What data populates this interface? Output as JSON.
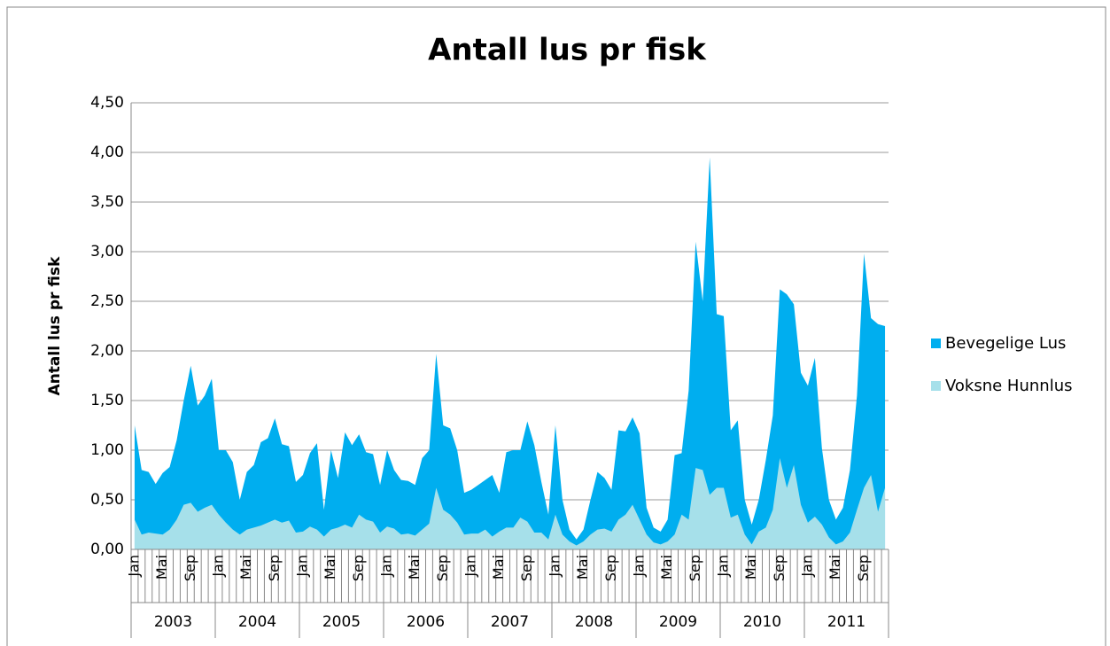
{
  "chart_data": {
    "type": "area",
    "title": "Antall lus pr fisk",
    "y_label": "Antall lus pr fisk",
    "categories": [
      "Jan",
      null,
      null,
      null,
      "Mai",
      null,
      null,
      null,
      "Sep",
      null,
      null,
      null,
      "Jan",
      null,
      null,
      null,
      "Mai",
      null,
      null,
      null,
      "Sep",
      null,
      null,
      null,
      "Jan",
      null,
      null,
      null,
      "Mai",
      null,
      null,
      null,
      "Sep",
      null,
      null,
      null,
      "Jan",
      null,
      null,
      null,
      "Mai",
      null,
      null,
      null,
      "Sep",
      null,
      null,
      null,
      "Jan",
      null,
      null,
      null,
      "Mai",
      null,
      null,
      null,
      "Sep",
      null,
      null,
      null,
      "Jan",
      null,
      null,
      null,
      "Mai",
      null,
      null,
      null,
      "Sep",
      null,
      null,
      null,
      "Jan",
      null,
      null,
      null,
      "Mai",
      null,
      null,
      null,
      "Sep",
      null,
      null,
      null,
      "Jan",
      null,
      null,
      null,
      "Mai",
      null,
      null,
      null,
      "Sep",
      null,
      null,
      null,
      "Jan",
      null,
      null,
      null,
      "Mai",
      null,
      null,
      null,
      "Sep",
      null,
      null,
      null
    ],
    "years": [
      "2003",
      "2004",
      "2005",
      "2006",
      "2007",
      "2008",
      "2009",
      "2010",
      "2011"
    ],
    "series": [
      {
        "name": "Bevegelige Lus",
        "color": "#00aeef",
        "values": [
          1.25,
          0.8,
          0.78,
          0.66,
          0.77,
          0.83,
          1.1,
          1.5,
          1.85,
          1.45,
          1.55,
          1.72,
          1.0,
          1.0,
          0.88,
          0.5,
          0.78,
          0.85,
          1.08,
          1.12,
          1.32,
          1.06,
          1.04,
          0.68,
          0.75,
          0.97,
          1.07,
          0.4,
          1.0,
          0.72,
          1.18,
          1.05,
          1.16,
          0.98,
          0.96,
          0.65,
          1.0,
          0.8,
          0.7,
          0.69,
          0.65,
          0.92,
          1.0,
          1.97,
          1.25,
          1.22,
          1.0,
          0.57,
          0.6,
          0.65,
          0.7,
          0.75,
          0.57,
          0.98,
          1.0,
          1.0,
          1.29,
          1.05,
          0.68,
          0.35,
          1.25,
          0.5,
          0.2,
          0.1,
          0.2,
          0.5,
          0.78,
          0.72,
          0.6,
          1.2,
          1.19,
          1.33,
          1.17,
          0.42,
          0.22,
          0.18,
          0.3,
          0.95,
          0.97,
          1.6,
          3.1,
          2.5,
          3.95,
          2.37,
          2.35,
          1.2,
          1.3,
          0.5,
          0.25,
          0.5,
          0.9,
          1.35,
          2.62,
          2.57,
          2.47,
          1.78,
          1.65,
          1.93,
          1.02,
          0.5,
          0.3,
          0.42,
          0.8,
          1.55,
          2.98,
          2.33,
          2.27,
          2.25
        ]
      },
      {
        "name": "Voksne Hunnlus",
        "color": "#a6e0ea",
        "values": [
          0.3,
          0.15,
          0.17,
          0.16,
          0.15,
          0.2,
          0.3,
          0.45,
          0.47,
          0.38,
          0.42,
          0.45,
          0.35,
          0.27,
          0.2,
          0.15,
          0.2,
          0.22,
          0.24,
          0.27,
          0.3,
          0.27,
          0.29,
          0.17,
          0.18,
          0.23,
          0.2,
          0.13,
          0.2,
          0.22,
          0.25,
          0.22,
          0.35,
          0.3,
          0.28,
          0.17,
          0.23,
          0.21,
          0.15,
          0.16,
          0.14,
          0.2,
          0.26,
          0.62,
          0.4,
          0.35,
          0.27,
          0.15,
          0.16,
          0.16,
          0.2,
          0.13,
          0.18,
          0.22,
          0.22,
          0.32,
          0.28,
          0.17,
          0.17,
          0.1,
          0.35,
          0.15,
          0.08,
          0.04,
          0.08,
          0.15,
          0.2,
          0.21,
          0.18,
          0.3,
          0.35,
          0.45,
          0.3,
          0.15,
          0.07,
          0.05,
          0.08,
          0.15,
          0.35,
          0.3,
          0.82,
          0.8,
          0.55,
          0.62,
          0.62,
          0.32,
          0.35,
          0.15,
          0.05,
          0.18,
          0.22,
          0.4,
          0.92,
          0.62,
          0.85,
          0.45,
          0.27,
          0.33,
          0.25,
          0.12,
          0.05,
          0.08,
          0.17,
          0.4,
          0.62,
          0.75,
          0.38,
          0.62
        ]
      }
    ],
    "ylim": [
      0,
      4.5
    ],
    "yticks": [
      {
        "value": 0,
        "label": "0,00"
      },
      {
        "value": 0.5,
        "label": "0,50"
      },
      {
        "value": 1,
        "label": "1,00"
      },
      {
        "value": 1.5,
        "label": "1,50"
      },
      {
        "value": 2,
        "label": "2,00"
      },
      {
        "value": 2.5,
        "label": "2,50"
      },
      {
        "value": 3,
        "label": "3,00"
      },
      {
        "value": 3.5,
        "label": "3,50"
      },
      {
        "value": 4,
        "label": "4,00"
      },
      {
        "value": 4.5,
        "label": "4,50"
      }
    ],
    "grid": true,
    "legend": "right"
  }
}
